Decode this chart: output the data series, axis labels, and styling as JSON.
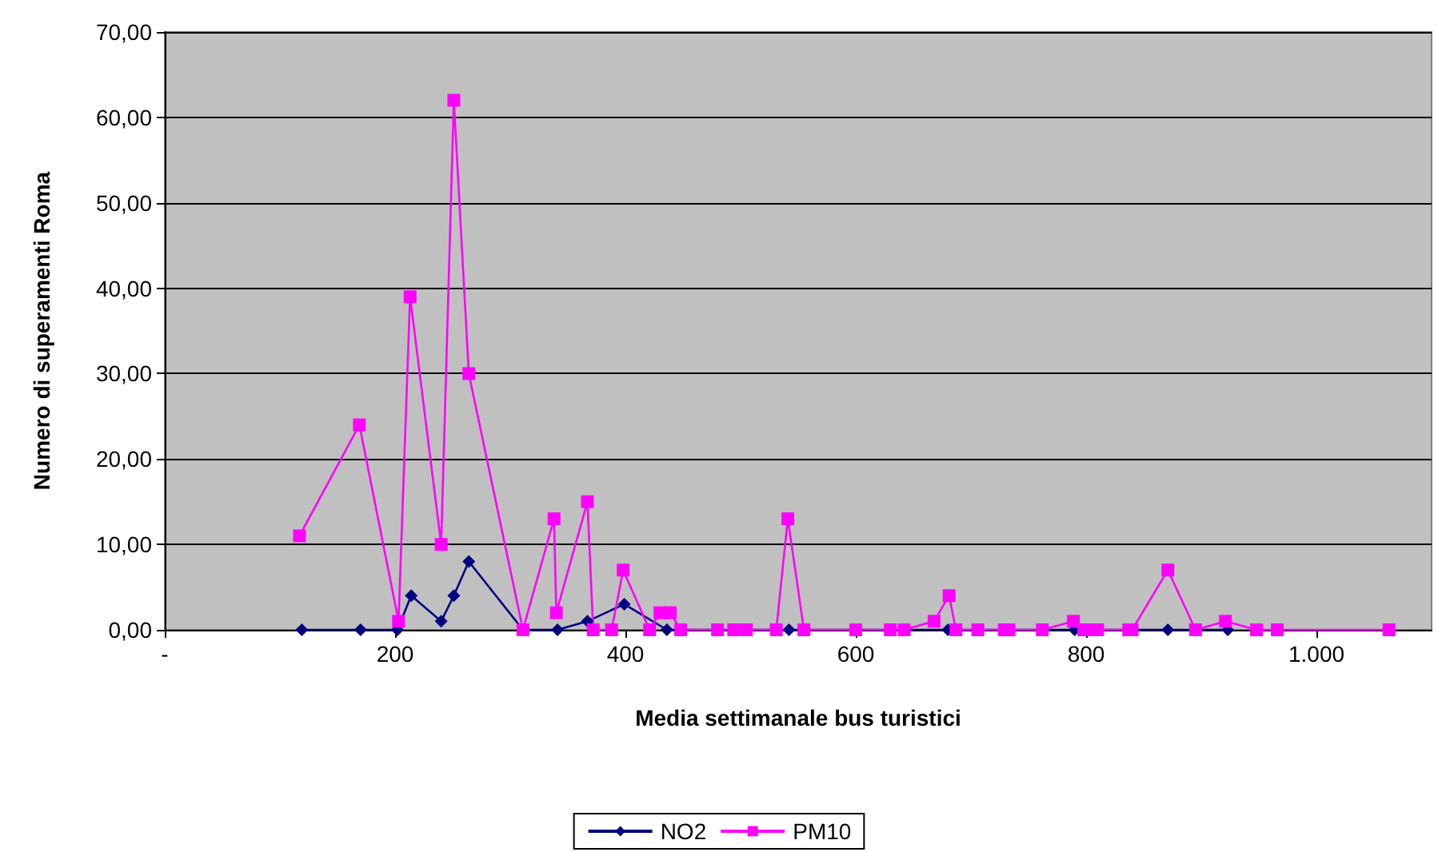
{
  "chart_data": {
    "type": "line",
    "xlabel": "Media settimanale bus turistici",
    "ylabel": "Numero di superamenti Roma",
    "xlim": [
      0,
      1100
    ],
    "xticks": [
      {
        "value": 0,
        "label": "-"
      },
      200,
      400,
      600,
      800,
      {
        "value": 1000,
        "label": "1.000"
      }
    ],
    "ylim": [
      0,
      70
    ],
    "yticks": [
      {
        "value": 0,
        "label": "0,00"
      },
      {
        "value": 10,
        "label": "10,00"
      },
      {
        "value": 20,
        "label": "20,00"
      },
      {
        "value": 30,
        "label": "30,00"
      },
      {
        "value": 40,
        "label": "40,00"
      },
      {
        "value": 50,
        "label": "50,00"
      },
      {
        "value": 60,
        "label": "60,00"
      },
      {
        "value": 70,
        "label": "70,00"
      }
    ],
    "grid": "y",
    "legend": "bottom",
    "line_style": "solid",
    "series": [
      {
        "name": "NO2",
        "color": "#000080",
        "marker": "diamond",
        "x": [
          119,
          170,
          202,
          214,
          240,
          251,
          264,
          311,
          341,
          367,
          399,
          436,
          542,
          680,
          790,
          871,
          895,
          923
        ],
        "values": [
          0,
          0,
          0,
          4,
          1,
          4,
          8,
          0,
          0,
          1,
          3,
          0,
          0,
          0,
          0,
          0,
          0,
          0
        ]
      },
      {
        "name": "PM10",
        "color": "#ff00ff",
        "marker": "square",
        "x": [
          117,
          169,
          203,
          213,
          240,
          251,
          264,
          311,
          338,
          340,
          367,
          372,
          388,
          398,
          421,
          430,
          439,
          448,
          480,
          494,
          505,
          531,
          541,
          555,
          600,
          630,
          642,
          668,
          681,
          687,
          706,
          729,
          733,
          762,
          789,
          798,
          806,
          810,
          837,
          840,
          871,
          895,
          921,
          948,
          966,
          1063
        ],
        "values": [
          11,
          24,
          1,
          39,
          10,
          62,
          30,
          0,
          13,
          2,
          15,
          0,
          0,
          7,
          0,
          2,
          2,
          0,
          0,
          0,
          0,
          0,
          13,
          0,
          0,
          0,
          0,
          1,
          4,
          0,
          0,
          0,
          0,
          0,
          1,
          0,
          0,
          0,
          0,
          0,
          7,
          0,
          1,
          0,
          0,
          0
        ]
      }
    ]
  }
}
